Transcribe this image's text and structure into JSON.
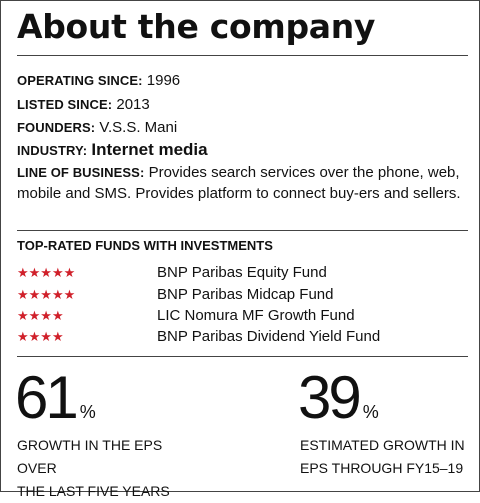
{
  "title": "About the company",
  "info": {
    "operating_label": "OPERATING SINCE:",
    "operating_value": "1996",
    "listed_label": "LISTED SINCE:",
    "listed_value": "2013",
    "founders_label": "FOUNDERS:",
    "founders_value": "V.S.S. Mani",
    "industry_label": "INDUSTRY:",
    "industry_value": "Internet media",
    "lob_label": "LINE OF BUSINESS:",
    "lob_value": "Provides search services over the phone, web, mobile and SMS. Provides platform to connect buy-ers and sellers."
  },
  "funds": {
    "title": "TOP-RATED FUNDS WITH INVESTMENTS",
    "items": [
      {
        "stars": "★★★★★",
        "rating": 5,
        "name": "BNP Paribas Equity Fund"
      },
      {
        "stars": "★★★★★",
        "rating": 5,
        "name": "BNP Paribas Midcap Fund"
      },
      {
        "stars": "★★★★",
        "rating": 4,
        "name": "LIC Nomura MF Growth Fund"
      },
      {
        "stars": "★★★★",
        "rating": 4,
        "name": "BNP Paribas Dividend Yield Fund"
      }
    ],
    "star_color": "#d0202a"
  },
  "stats": [
    {
      "value": "61",
      "unit": "%",
      "desc_line1": "GROWTH IN THE EPS OVER",
      "desc_line2": "THE LAST FIVE YEARS"
    },
    {
      "value": "39",
      "unit": "%",
      "desc_line1": "ESTIMATED GROWTH IN",
      "desc_line2": "EPS THROUGH FY15–19"
    }
  ]
}
